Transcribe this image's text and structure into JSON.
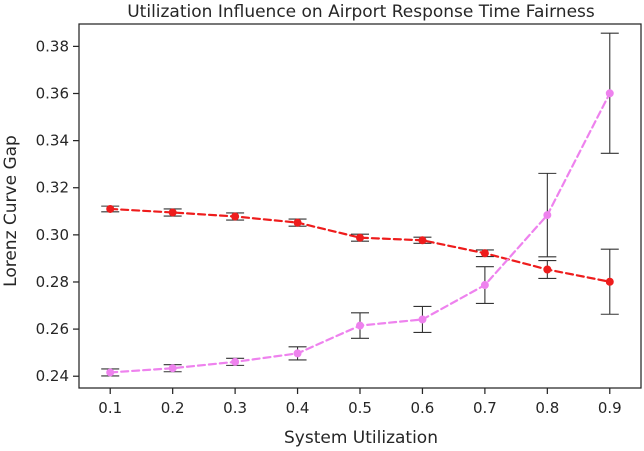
{
  "chart_data": {
    "type": "line",
    "title": "Utilization Influence on Airport Response Time Fairness",
    "xlabel": "System Utilization",
    "ylabel": "Lorenz Curve Gap",
    "xlim": [
      0.05,
      0.95
    ],
    "ylim": [
      0.235,
      0.3895
    ],
    "x": [
      0.1,
      0.2,
      0.3,
      0.4,
      0.5,
      0.6,
      0.7,
      0.8,
      0.9
    ],
    "xticks": [
      "0.1",
      "0.2",
      "0.3",
      "0.4",
      "0.5",
      "0.6",
      "0.7",
      "0.8",
      "0.9"
    ],
    "yticks": [
      "0.24",
      "0.26",
      "0.28",
      "0.30",
      "0.32",
      "0.34",
      "0.36",
      "0.38"
    ],
    "yticks_values": [
      0.24,
      0.26,
      0.28,
      0.3,
      0.32,
      0.34,
      0.36,
      0.38
    ],
    "grid": false,
    "legend": false,
    "series": [
      {
        "color": "#ee1c1c",
        "line_style": "dashed",
        "values": [
          0.311,
          0.3095,
          0.3078,
          0.3052,
          0.2988,
          0.2977,
          0.2922,
          0.2853,
          0.2801
        ],
        "error": [
          0.0012,
          0.0015,
          0.0015,
          0.0015,
          0.0015,
          0.0013,
          0.0014,
          0.0038,
          0.0138
        ]
      },
      {
        "color": "#ee82ee",
        "line_style": "dashed",
        "values": [
          0.2416,
          0.2434,
          0.2461,
          0.2497,
          0.2615,
          0.2641,
          0.2787,
          0.3084,
          0.3601
        ],
        "error": [
          0.0015,
          0.0015,
          0.0015,
          0.0028,
          0.0054,
          0.0055,
          0.0078,
          0.0177,
          0.0255
        ]
      }
    ]
  }
}
